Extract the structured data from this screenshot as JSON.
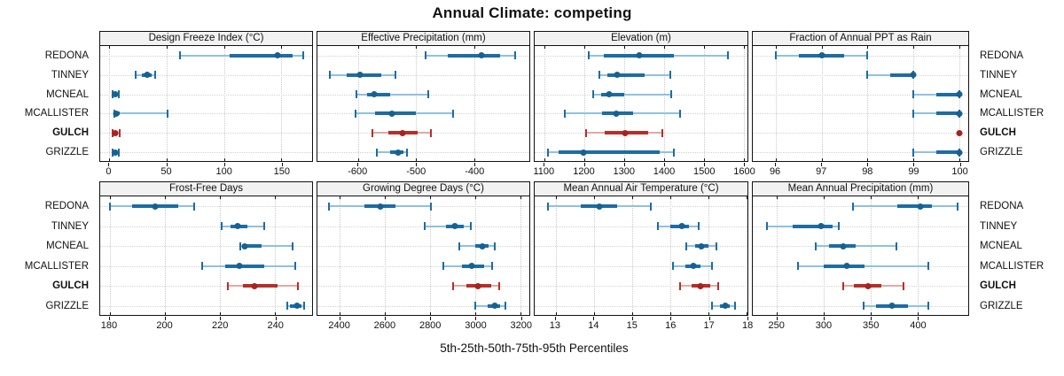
{
  "title": "Annual Climate: competing",
  "axis_note": "5th-25th-50th-75th-95th Percentiles",
  "sites": [
    "REDONA",
    "TINNEY",
    "MCNEAL",
    "MCALLISTER",
    "GULCH",
    "GRIZZLE"
  ],
  "highlight_site": "GULCH",
  "percentiles": [
    "5th",
    "25th",
    "50th",
    "75th",
    "95th"
  ],
  "colors": {
    "blue": "#1d6ca4",
    "blue_light": "#8fc1e0",
    "blue_dot": "#17618f",
    "red": "#b5302a",
    "red_light": "#e2aaa3",
    "red_dot": "#a62420",
    "header_bg": "#f2f2f2",
    "border": "#111111",
    "grid": "#c9c9c9"
  },
  "chart_data": [
    {
      "type": "dot-interval",
      "title": "Design Freeze Index (°C)",
      "axis": {
        "min": -8,
        "max": 177,
        "ticks": [
          0,
          50,
          100,
          150
        ]
      },
      "series": {
        "REDONA": [
          62,
          105,
          147,
          160,
          169
        ],
        "TINNEY": [
          23,
          28,
          33,
          37,
          40
        ],
        "MCNEAL": [
          3,
          4,
          5,
          6,
          8
        ],
        "MCALLISTER": [
          4,
          5,
          6,
          9,
          51
        ],
        "GULCH": [
          3,
          4,
          5,
          7,
          9
        ],
        "GRIZZLE": [
          3,
          4,
          5,
          6,
          8
        ]
      }
    },
    {
      "type": "dot-interval",
      "title": "Effective Precipitation (mm)",
      "axis": {
        "min": -670,
        "max": -305,
        "ticks": [
          -600,
          -500,
          -400
        ]
      },
      "series": {
        "REDONA": [
          -484,
          -445,
          -388,
          -355,
          -329
        ],
        "TINNEY": [
          -649,
          -620,
          -596,
          -560,
          -536
        ],
        "MCNEAL": [
          -603,
          -585,
          -572,
          -545,
          -479
        ],
        "MCALLISTER": [
          -605,
          -570,
          -541,
          -500,
          -437
        ],
        "GULCH": [
          -575,
          -548,
          -523,
          -497,
          -474
        ],
        "GRIZZLE": [
          -568,
          -545,
          -531,
          -522,
          -516
        ]
      }
    },
    {
      "type": "dot-interval",
      "title": "Elevation (m)",
      "axis": {
        "min": 1075,
        "max": 1610,
        "ticks": [
          1100,
          1200,
          1300,
          1400,
          1500,
          1600
        ]
      },
      "series": {
        "REDONA": [
          1210,
          1248,
          1338,
          1425,
          1560
        ],
        "TINNEY": [
          1238,
          1258,
          1282,
          1352,
          1415
        ],
        "MCNEAL": [
          1222,
          1242,
          1262,
          1300,
          1418
        ],
        "MCALLISTER": [
          1150,
          1245,
          1280,
          1322,
          1440
        ],
        "GULCH": [
          1205,
          1252,
          1303,
          1360,
          1395
        ],
        "GRIZZLE": [
          1108,
          1135,
          1197,
          1390,
          1425
        ]
      }
    },
    {
      "type": "dot-interval",
      "title": "Fraction of Annual PPT as Rain",
      "axis": {
        "min": 95.5,
        "max": 100.2,
        "ticks": [
          96,
          97,
          98,
          99,
          100
        ]
      },
      "series": {
        "REDONA": [
          96,
          96.5,
          97,
          97.5,
          98
        ],
        "TINNEY": [
          98,
          98.5,
          99,
          99,
          99
        ],
        "MCNEAL": [
          99,
          99.5,
          100,
          100,
          100
        ],
        "MCALLISTER": [
          99,
          99.5,
          100,
          100,
          100
        ],
        "GULCH": [
          100,
          100,
          100,
          100,
          100
        ],
        "GRIZZLE": [
          99,
          99.5,
          100,
          100,
          100
        ]
      }
    },
    {
      "type": "dot-interval",
      "title": "Frost-Free Days",
      "axis": {
        "min": 176.5,
        "max": 253.5,
        "ticks": [
          180,
          200,
          220,
          240
        ]
      },
      "series": {
        "REDONA": [
          180,
          188,
          196.5,
          205,
          210.5
        ],
        "TINNEY": [
          220.5,
          224,
          226.5,
          230,
          236
        ],
        "MCNEAL": [
          227.5,
          228,
          229,
          235,
          246.5
        ],
        "MCALLISTER": [
          213.5,
          222,
          227,
          236,
          247.5
        ],
        "GULCH": [
          223,
          228.5,
          232.5,
          241,
          248.5
        ],
        "GRIZZLE": [
          244.5,
          245.5,
          248,
          249.5,
          250.5
        ]
      }
    },
    {
      "type": "dot-interval",
      "title": "Growing Degree Days (°C)",
      "axis": {
        "min": 2300,
        "max": 3240,
        "ticks": [
          2400,
          2600,
          2800,
          3000,
          3200
        ]
      },
      "series": {
        "REDONA": [
          2350,
          2510,
          2580,
          2645,
          2805
        ],
        "TINNEY": [
          2775,
          2870,
          2910,
          2950,
          2980
        ],
        "MCNEAL": [
          2930,
          3000,
          3030,
          3060,
          3085
        ],
        "MCALLISTER": [
          2860,
          2940,
          2985,
          3040,
          3075
        ],
        "GULCH": [
          2900,
          2960,
          3010,
          3070,
          3105
        ],
        "GRIZZLE": [
          3000,
          3055,
          3085,
          3110,
          3135
        ]
      }
    },
    {
      "type": "dot-interval",
      "title": "Mean Annual Air Temperature (°C)",
      "axis": {
        "min": 12.45,
        "max": 18.02,
        "ticks": [
          13,
          14,
          15,
          16,
          17,
          18
        ]
      },
      "series": {
        "REDONA": [
          12.8,
          13.65,
          14.15,
          14.6,
          15.5
        ],
        "TINNEY": [
          15.68,
          16.0,
          16.3,
          16.5,
          16.75
        ],
        "MCNEAL": [
          16.43,
          16.65,
          16.82,
          17.0,
          17.2
        ],
        "MCALLISTER": [
          16.06,
          16.4,
          16.6,
          16.8,
          17.1
        ],
        "GULCH": [
          16.25,
          16.55,
          16.8,
          17.05,
          17.25
        ],
        "GRIZZLE": [
          17.1,
          17.3,
          17.43,
          17.55,
          17.7
        ]
      }
    },
    {
      "type": "dot-interval",
      "title": "Mean Annual Precipitation (mm)",
      "axis": {
        "min": 224,
        "max": 454,
        "ticks": [
          250,
          300,
          350,
          400
        ]
      },
      "series": {
        "REDONA": [
          331,
          378,
          403,
          415,
          443
        ],
        "TINNEY": [
          239,
          267,
          297,
          309,
          316
        ],
        "MCNEAL": [
          291,
          305,
          321,
          334,
          377
        ],
        "MCALLISTER": [
          272,
          300,
          324,
          343,
          411
        ],
        "GULCH": [
          321,
          332,
          347,
          361,
          385
        ],
        "GRIZZLE": [
          342,
          356,
          373,
          390,
          411
        ]
      }
    }
  ]
}
